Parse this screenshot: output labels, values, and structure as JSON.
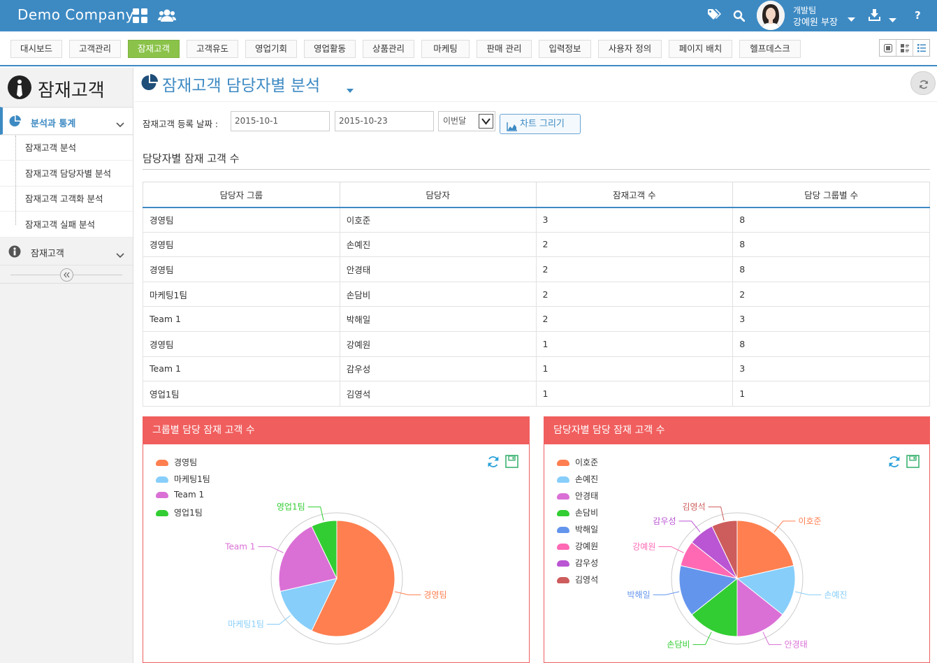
{
  "topbar": {
    "brand": "Demo Company",
    "user_team": "개발팀",
    "user_name": "강예원 부장"
  },
  "menu": {
    "tabs": [
      "대시보드",
      "고객관리",
      "잠재고객",
      "고객유도",
      "영업기회",
      "영업활동",
      "상품관리",
      "마케팅",
      "판매 관리",
      "입력정보",
      "사용자 정의",
      "페이지 배치",
      "헬프데스크"
    ],
    "active": "잠재고객"
  },
  "sidebar": {
    "title": "잠재고객",
    "section1": "분석과 통계",
    "items": [
      "잠재고객 분석",
      "잠재고객 담당자별 분석",
      "잠재고객 고객화 분석",
      "잠재고객 실패 분석"
    ],
    "section2": "잠재고객"
  },
  "main": {
    "title": "잠재고객 담당자별 분석",
    "filter": {
      "label": "잠재고객 등록 날짜 :",
      "from": "2015-10-1",
      "to": "2015-10-23",
      "period": "이번달",
      "draw_button": "차트 그리기"
    },
    "section_title": "담당자별 잠재 고객 수",
    "table": {
      "headers": [
        "담당자 그룹",
        "담당자",
        "잠재고객 수",
        "담당 그룹별 수"
      ],
      "rows": [
        [
          "경영팀",
          "이호준",
          "3",
          "8"
        ],
        [
          "경영팀",
          "손예진",
          "2",
          "8"
        ],
        [
          "경영팀",
          "안경태",
          "2",
          "8"
        ],
        [
          "마케팅1팀",
          "손담비",
          "2",
          "2"
        ],
        [
          "Team 1",
          "박해일",
          "2",
          "3"
        ],
        [
          "경영팀",
          "강예원",
          "1",
          "8"
        ],
        [
          "Team 1",
          "감우성",
          "1",
          "3"
        ],
        [
          "영업1팀",
          "김영석",
          "1",
          "1"
        ]
      ]
    }
  },
  "chart_data": [
    {
      "type": "pie",
      "title": "그룹별 담당 잠재 고객 수",
      "categories": [
        "경영팀",
        "마케팅1팀",
        "Team 1",
        "영업1팀"
      ],
      "values": [
        8,
        2,
        3,
        1
      ],
      "colors": [
        "#ff7f50",
        "#87cefa",
        "#da70d6",
        "#32cd32"
      ]
    },
    {
      "type": "pie",
      "title": "담당자별 담당 잠재 고객 수",
      "categories": [
        "이호준",
        "손예진",
        "안경태",
        "손담비",
        "박해일",
        "강예원",
        "감우성",
        "김영석"
      ],
      "values": [
        3,
        2,
        2,
        2,
        2,
        1,
        1,
        1
      ],
      "colors": [
        "#ff7f50",
        "#87cefa",
        "#da70d6",
        "#32cd32",
        "#6495ed",
        "#ff69b4",
        "#ba55d3",
        "#cd5c5c"
      ]
    }
  ]
}
